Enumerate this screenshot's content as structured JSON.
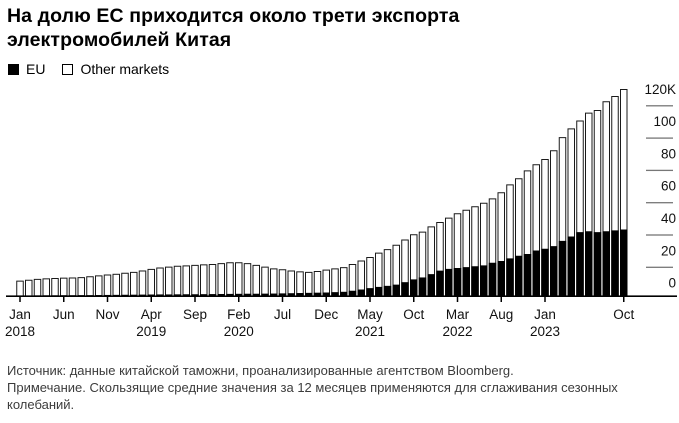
{
  "header": {
    "title_line1": "На долю ЕС приходится около трети экспорта",
    "title_line2": "электромобилей Китая"
  },
  "legend": {
    "items": [
      {
        "label": "EU",
        "swatch": "black-filled"
      },
      {
        "label": "Other markets",
        "swatch": "white-outlined"
      }
    ]
  },
  "footer": {
    "source": "Источник: данные китайской таможни, проанализированные агентством Bloomberg.",
    "note": "Примечание. Скользящие средние значения за 12 месяцев применяются для сглаживания сезонных колебаний."
  },
  "colors": {
    "eu_fill": "#000000",
    "other_fill": "#ffffff",
    "bar_outline": "#1a1a1a",
    "axis": "#000000",
    "y_dash": "#777777",
    "label_text": "#111111",
    "footnote_text": "#3c3c3c"
  },
  "chart_data": {
    "type": "bar",
    "stacked": true,
    "title": "На долю ЕС приходится около трети экспорта электромобилей Китая",
    "xlabel": "",
    "ylabel": "",
    "unit_hint": "K",
    "ylim": [
      0,
      120
    ],
    "grid": false,
    "legend_position": "top-left",
    "categories": [
      "Jan 2018",
      "Feb 2018",
      "Mar 2018",
      "Apr 2018",
      "May 2018",
      "Jun 2018",
      "Jul 2018",
      "Aug 2018",
      "Sep 2018",
      "Oct 2018",
      "Nov 2018",
      "Dec 2018",
      "Jan 2019",
      "Feb 2019",
      "Mar 2019",
      "Apr 2019",
      "May 2019",
      "Jun 2019",
      "Jul 2019",
      "Aug 2019",
      "Sep 2019",
      "Oct 2019",
      "Nov 2019",
      "Dec 2019",
      "Jan 2020",
      "Feb 2020",
      "Mar 2020",
      "Apr 2020",
      "May 2020",
      "Jun 2020",
      "Jul 2020",
      "Aug 2020",
      "Sep 2020",
      "Oct 2020",
      "Nov 2020",
      "Dec 2020",
      "Jan 2021",
      "Feb 2021",
      "Mar 2021",
      "Apr 2021",
      "May 2021",
      "Jun 2021",
      "Jul 2021",
      "Aug 2021",
      "Sep 2021",
      "Oct 2021",
      "Nov 2021",
      "Dec 2021",
      "Jan 2022",
      "Feb 2022",
      "Mar 2022",
      "Apr 2022",
      "May 2022",
      "Jun 2022",
      "Jul 2022",
      "Aug 2022",
      "Sep 2022",
      "Oct 2022",
      "Nov 2022",
      "Dec 2022",
      "Jan 2023",
      "Feb 2023",
      "Mar 2023",
      "Apr 2023",
      "May 2023",
      "Jun 2023",
      "Jul 2023",
      "Aug 2023",
      "Sep 2023",
      "Oct 2023"
    ],
    "series": [
      {
        "name": "EU",
        "values": [
          0.3,
          0.3,
          0.35,
          0.4,
          0.4,
          0.45,
          0.45,
          0.5,
          0.5,
          0.55,
          0.6,
          0.65,
          0.7,
          0.75,
          0.8,
          0.85,
          0.9,
          0.9,
          0.95,
          1.0,
          1.0,
          1.05,
          1.1,
          1.15,
          1.2,
          1.25,
          1.3,
          1.3,
          1.35,
          1.4,
          1.5,
          1.6,
          1.7,
          1.8,
          1.9,
          2.0,
          2.2,
          2.4,
          3.0,
          3.7,
          4.5,
          5.2,
          5.8,
          6.5,
          7.9,
          9.5,
          10.6,
          12.5,
          14.5,
          15.5,
          16.0,
          16.5,
          17.0,
          17.5,
          19.0,
          20.0,
          21.5,
          23.0,
          24.0,
          26.0,
          27.0,
          28.5,
          31.5,
          34.0,
          36.5,
          37.0,
          36.5,
          37.0,
          37.5,
          38.0
        ]
      },
      {
        "name": "Other markets",
        "values": [
          8.2,
          8.7,
          9.15,
          9.4,
          9.6,
          9.75,
          9.85,
          10.0,
          10.5,
          10.95,
          11.4,
          11.75,
          12.3,
          12.75,
          13.5,
          14.35,
          15.1,
          15.6,
          16.05,
          16.2,
          16.5,
          16.75,
          16.9,
          17.35,
          17.8,
          17.75,
          17.2,
          16.2,
          15.15,
          14.1,
          13.5,
          12.7,
          12.1,
          11.7,
          12.1,
          12.8,
          13.3,
          13.8,
          15.0,
          16.3,
          17.5,
          19.3,
          20.7,
          22.5,
          24.1,
          25.5,
          25.9,
          27.0,
          27.5,
          29.0,
          31.0,
          32.5,
          34.0,
          35.5,
          36.5,
          39.0,
          42.0,
          44.0,
          47.5,
          49.0,
          51.0,
          54.5,
          59.0,
          61.5,
          63.5,
          67.5,
          69.5,
          74.0,
          76.5,
          80.0
        ]
      }
    ],
    "x_ticks": [
      {
        "index": 0,
        "label": "Jan",
        "year": "2018"
      },
      {
        "index": 5,
        "label": "Jun"
      },
      {
        "index": 10,
        "label": "Nov"
      },
      {
        "index": 15,
        "label": "Apr",
        "year": "2019"
      },
      {
        "index": 20,
        "label": "Sep"
      },
      {
        "index": 25,
        "label": "Feb",
        "year": "2020"
      },
      {
        "index": 30,
        "label": "Jul"
      },
      {
        "index": 35,
        "label": "Dec"
      },
      {
        "index": 40,
        "label": "May",
        "year": "2021"
      },
      {
        "index": 45,
        "label": "Oct"
      },
      {
        "index": 50,
        "label": "Mar",
        "year": "2022"
      },
      {
        "index": 55,
        "label": "Aug"
      },
      {
        "index": 60,
        "label": "Jan",
        "year": "2023"
      },
      {
        "index": 69,
        "label": "Oct"
      }
    ],
    "y_ticks_top_down": [
      "120K",
      "100",
      "80",
      "60",
      "40",
      "20",
      "0"
    ]
  }
}
